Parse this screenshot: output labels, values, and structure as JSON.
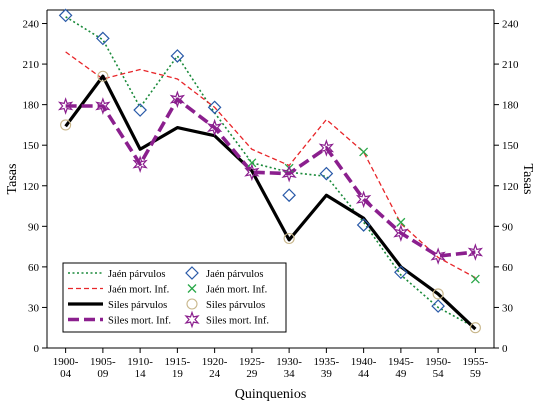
{
  "chart_data": {
    "type": "line",
    "xlabel": "Quinquenios",
    "ylabel": "Tasas",
    "ylim": [
      0,
      250
    ],
    "yticks": [
      0,
      30,
      60,
      90,
      120,
      150,
      180,
      210,
      240
    ],
    "categories": [
      [
        "1900-",
        "04"
      ],
      [
        "1905-",
        "09"
      ],
      [
        "1910-",
        "14"
      ],
      [
        "1915-",
        "19"
      ],
      [
        "1920-",
        "24"
      ],
      [
        "1925-",
        "29"
      ],
      [
        "1930-",
        "34"
      ],
      [
        "1935-",
        "39"
      ],
      [
        "1940-",
        "44"
      ],
      [
        "1945-",
        "49"
      ],
      [
        "1950-",
        "54"
      ],
      [
        "1955-",
        "59"
      ]
    ],
    "grid": false,
    "legend_position": "bottom-left",
    "series": [
      {
        "name": "Jaén párvulos",
        "color": "#1a8a3a",
        "line_style": "dotted",
        "marker": "none",
        "values": [
          245,
          228,
          178,
          216,
          174,
          137,
          130,
          127,
          93,
          54,
          30,
          15
        ]
      },
      {
        "name": "Jaén mort. Inf.",
        "color": "#e8262a",
        "line_style": "dashed",
        "marker": "none",
        "values": [
          219,
          199,
          206,
          199,
          178,
          147,
          135,
          169,
          145,
          92,
          67,
          52
        ]
      },
      {
        "name": "Siles párvulos",
        "color": "#000000",
        "line_style": "solid-thick",
        "marker": "none",
        "values": [
          164,
          201,
          147,
          163,
          157,
          131,
          80,
          113,
          96,
          60,
          40,
          14
        ]
      },
      {
        "name": "Siles mort. Inf.",
        "color": "#8b1f8e",
        "line_style": "dashed-thick",
        "marker": "none",
        "values": [
          179,
          179,
          136,
          184,
          163,
          130,
          129,
          148,
          110,
          85,
          68,
          71
        ]
      },
      {
        "name": "Jaén párvulos",
        "color": "#2a5aa8",
        "line_style": "none",
        "marker": "diamond",
        "values": [
          246,
          229,
          176,
          216,
          178,
          null,
          113,
          129,
          91,
          56,
          31,
          null
        ]
      },
      {
        "name": "Jaén mort. Inf.",
        "color": "#2aa84a",
        "line_style": "none",
        "marker": "x",
        "values": [
          null,
          null,
          null,
          null,
          null,
          137,
          133,
          null,
          145,
          93,
          null,
          51
        ]
      },
      {
        "name": "Siles párvulos",
        "color": "#c8b68a",
        "line_style": "none",
        "marker": "circle",
        "values": [
          165,
          201,
          null,
          null,
          null,
          null,
          81,
          null,
          null,
          null,
          40,
          15
        ]
      },
      {
        "name": "Siles mort. Inf.",
        "color": "#8b1f8e",
        "line_style": "none",
        "marker": "star",
        "values": [
          179,
          179,
          136,
          184,
          163,
          130,
          129,
          148,
          110,
          85,
          68,
          71
        ]
      }
    ]
  }
}
